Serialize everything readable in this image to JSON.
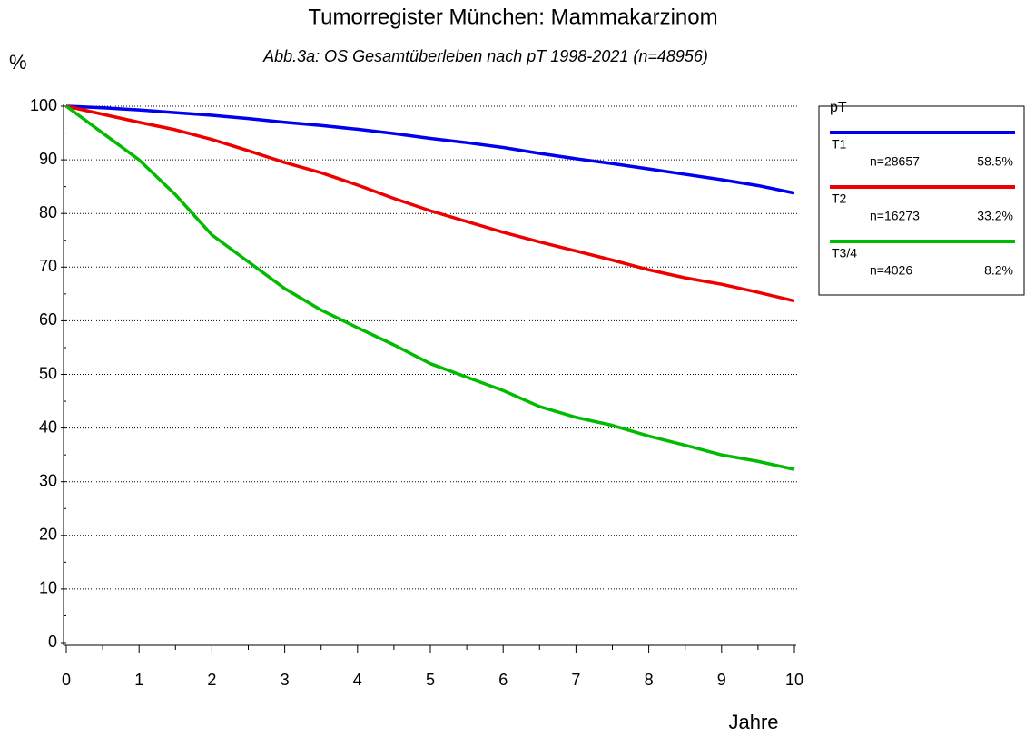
{
  "chart_data": {
    "type": "line",
    "title": "Tumorregister München: Mammakarzinom",
    "subtitle": "Abb.3a: OS Gesamtüberleben nach pT  1998-2021 (n=48956)",
    "ylabel": "%",
    "xlabel": "Jahre",
    "legend_title": "pT",
    "x": [
      0,
      0.5,
      1,
      1.5,
      2,
      2.5,
      3,
      3.5,
      4,
      4.5,
      5,
      5.5,
      6,
      6.5,
      7,
      7.5,
      8,
      8.5,
      9,
      9.5,
      10
    ],
    "series": [
      {
        "name": "T1",
        "color": "#0000ee",
        "count_label": "n=28657",
        "percent_label": "58.5%",
        "values": [
          100,
          99.7,
          99.3,
          98.8,
          98.3,
          97.7,
          97,
          96.4,
          95.7,
          94.9,
          94,
          93.2,
          92.3,
          91.2,
          90.2,
          89.3,
          88.3,
          87.3,
          86.3,
          85.2,
          83.8
        ]
      },
      {
        "name": "T2",
        "color": "#ee0000",
        "count_label": "n=16273",
        "percent_label": "33.2%",
        "values": [
          100,
          98.5,
          97,
          95.6,
          93.8,
          91.7,
          89.5,
          87.6,
          85.3,
          82.8,
          80.5,
          78.5,
          76.5,
          74.7,
          73,
          71.3,
          69.5,
          68,
          66.8,
          65.3,
          63.7
        ]
      },
      {
        "name": "T3/4",
        "color": "#00bb00",
        "count_label": "n=4026",
        "percent_label": "8.2%",
        "values": [
          100,
          95,
          90,
          83.5,
          76,
          71,
          66,
          62,
          58.7,
          55.5,
          52,
          49.5,
          47,
          44,
          42,
          40.5,
          38.5,
          36.8,
          35,
          33.8,
          32.3
        ]
      }
    ],
    "xlim": [
      0,
      10
    ],
    "xticks": [
      0,
      1,
      2,
      3,
      4,
      5,
      6,
      7,
      8,
      9,
      10
    ],
    "ylim": [
      0,
      100
    ],
    "yticks": [
      0,
      10,
      20,
      30,
      40,
      50,
      60,
      70,
      80,
      90,
      100
    ],
    "grid": true
  }
}
